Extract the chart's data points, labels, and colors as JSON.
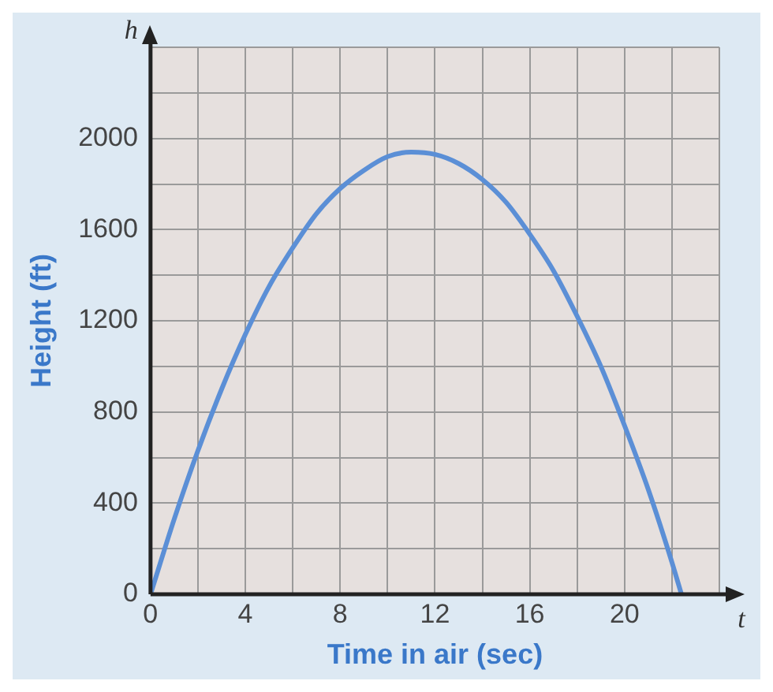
{
  "chart_data": {
    "type": "line",
    "xlabel": "Time in air (sec)",
    "ylabel": "Height (ft)",
    "annotations": [
      "h",
      "t"
    ],
    "x": [
      0,
      1,
      2,
      3,
      4,
      5,
      6,
      7,
      8,
      9,
      10,
      11,
      12,
      13,
      14,
      15,
      16,
      17,
      18,
      19,
      20,
      21,
      22,
      22.4
    ],
    "series": [
      {
        "color": "#5b8fd6",
        "values": [
          0,
          330,
          630,
          900,
          1140,
          1350,
          1520,
          1670,
          1780,
          1860,
          1920,
          1940,
          1930,
          1890,
          1820,
          1720,
          1580,
          1420,
          1220,
          1000,
          740,
          460,
          140,
          0
        ]
      }
    ],
    "xlim": [
      0,
      24
    ],
    "ylim": [
      0,
      2400
    ],
    "xticks": [
      0,
      {
        "value": 2,
        "label": null
      },
      4,
      {
        "value": 6,
        "label": null
      },
      8,
      {
        "value": 10,
        "label": null
      },
      12,
      {
        "value": 14,
        "label": null
      },
      16,
      {
        "value": 18,
        "label": null
      },
      20,
      {
        "value": 22,
        "label": null
      },
      {
        "value": 24,
        "label": null
      }
    ],
    "yticks": [
      0,
      {
        "value": 200,
        "label": null
      },
      400,
      {
        "value": 600,
        "label": null
      },
      800,
      {
        "value": 1000,
        "label": null
      },
      1200,
      {
        "value": 1400,
        "label": null
      },
      1600,
      {
        "value": 1800,
        "label": null
      },
      2000,
      {
        "value": 2200,
        "label": null
      },
      {
        "value": 2400,
        "label": null
      }
    ],
    "grid": true,
    "legend": false,
    "marker": "none",
    "line_style": "solid"
  }
}
